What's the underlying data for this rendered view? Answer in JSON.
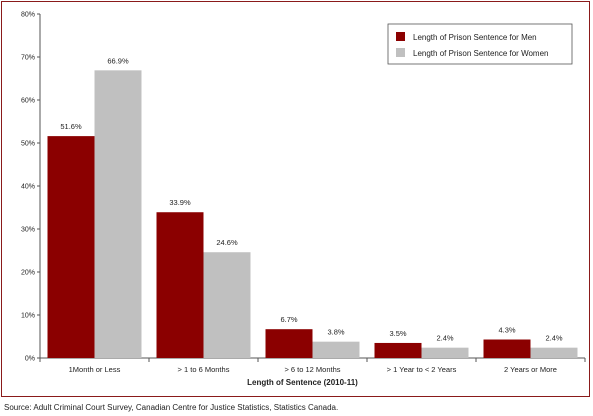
{
  "chart_data": {
    "type": "bar",
    "categories": [
      "1Month or Less",
      "> 1 to 6 Months",
      "> 6 to 12 Months",
      "> 1 Year to < 2 Years",
      "2 Years or More"
    ],
    "series": [
      {
        "name": "Length of Prison Sentence for Men",
        "values": [
          51.6,
          33.9,
          6.7,
          3.5,
          4.3
        ],
        "labels": [
          "51.6%",
          "33.9%",
          "6.7%",
          "3.5%",
          "4.3%"
        ],
        "color": "#8b0000"
      },
      {
        "name": "Length of Prison Sentence for Women",
        "values": [
          66.9,
          24.6,
          3.8,
          2.4,
          2.4
        ],
        "labels": [
          "66.9%",
          "24.6%",
          "3.8%",
          "2.4%",
          "2.4%"
        ],
        "color": "#c0c0c0"
      }
    ],
    "xlabel": "Length of Sentence (2010-11)",
    "ylabel": "",
    "ylim": [
      0,
      80
    ],
    "yticks": [
      0,
      10,
      20,
      30,
      40,
      50,
      60,
      70,
      80
    ],
    "ytick_labels": [
      "0%",
      "10%",
      "20%",
      "30%",
      "40%",
      "50%",
      "60%",
      "70%",
      "80%"
    ],
    "grid": false,
    "legend_position": "top-right"
  },
  "source_text": "Source:  Adult Criminal Court Survey, Canadian Centre for Justice Statistics, Statistics Canada."
}
